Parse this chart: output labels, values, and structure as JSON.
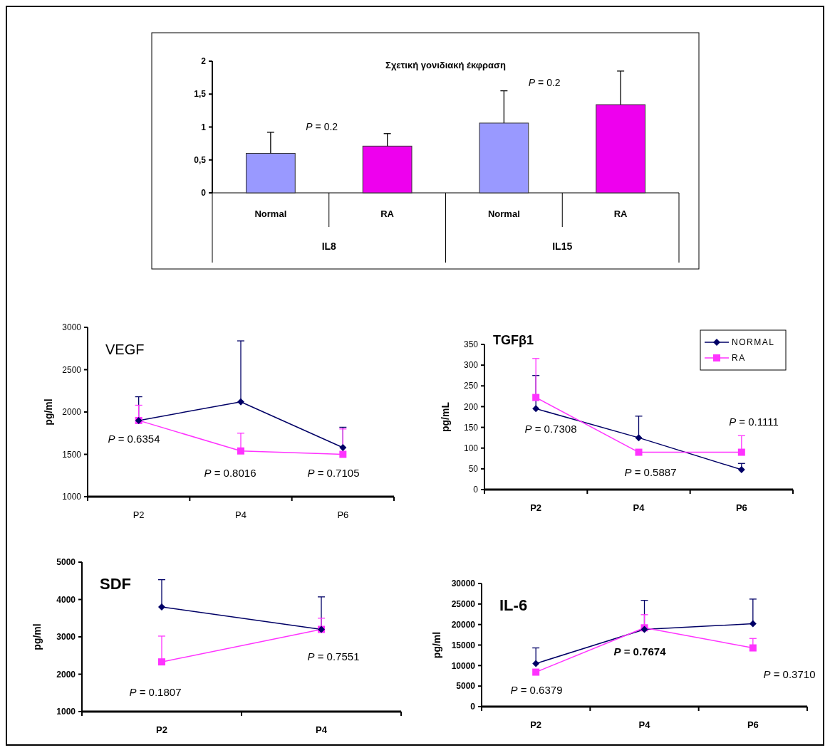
{
  "chart_data": [
    {
      "type": "bar",
      "title": "Σχετική γονιδιακή έκφραση",
      "categories": [
        "Normal",
        "RA",
        "Normal",
        "RA"
      ],
      "values": [
        0.6,
        0.71,
        1.06,
        1.34
      ],
      "colors": [
        "#9999ff",
        "#ee00ee",
        "#9999ff",
        "#ee00ee"
      ],
      "errors": [
        [
          0.6,
          0.92
        ],
        [
          0.71,
          0.9
        ],
        [
          1.06,
          1.55
        ],
        [
          1.34,
          1.85
        ]
      ],
      "ylim": [
        0,
        2
      ],
      "yticks": [
        0,
        {
          "value": 0.5,
          "label": "0,5"
        },
        1,
        {
          "value": 1.5,
          "label": "1,5"
        },
        2
      ],
      "annotations": [
        "P = 0.2",
        "P = 0.2",
        "IL8",
        "IL15"
      ]
    },
    {
      "type": "line",
      "title": "VEGF",
      "ylabel": "pg/ml",
      "categories": [
        "P2",
        "P4",
        "P6"
      ],
      "ylim": [
        1000,
        3000
      ],
      "yticks": [
        1000,
        1500,
        2000,
        2500,
        3000
      ],
      "grid": false,
      "legend": false,
      "series": [
        {
          "color": "#000066",
          "marker": "diamond",
          "values": [
            1900,
            2120,
            1580
          ],
          "errors": [
            [
              1900,
              2180
            ],
            [
              2120,
              2840
            ],
            [
              1580,
              1820
            ]
          ]
        },
        {
          "color": "#ff33ff",
          "marker": "square",
          "values": [
            1900,
            1540,
            1500
          ],
          "errors": [
            [
              1900,
              2080
            ],
            [
              1540,
              1750
            ],
            [
              1500,
              1800
            ]
          ]
        }
      ],
      "annotations": [
        "P = 0.6354",
        "P = 0.8016",
        "P = 0.7105"
      ]
    },
    {
      "type": "line",
      "title": "TGFβ1",
      "ylabel": "pg/mL",
      "categories": [
        "P2",
        "P4",
        "P6"
      ],
      "ylim": [
        0,
        350
      ],
      "yticks": [
        0,
        50,
        100,
        150,
        200,
        250,
        300,
        350
      ],
      "grid": false,
      "legend": "top right",
      "series": [
        {
          "name": "NORMAL",
          "color": "#000066",
          "marker": "diamond",
          "values": [
            195,
            125,
            48
          ],
          "errors": [
            [
              195,
              275
            ],
            [
              125,
              177
            ],
            [
              48,
              63
            ]
          ]
        },
        {
          "name": "RA",
          "color": "#ff33ff",
          "marker": "square",
          "values": [
            222,
            90,
            90
          ],
          "errors": [
            [
              222,
              316
            ],
            null,
            [
              90,
              130
            ]
          ]
        }
      ],
      "annotations": [
        "P = 0.7308",
        "P = 0.5887",
        "P = 0.1111"
      ]
    },
    {
      "type": "line",
      "title": "SDF",
      "ylabel": "pg/ml",
      "categories": [
        "P2",
        "P4"
      ],
      "ylim": [
        1000,
        5000
      ],
      "yticks": [
        1000,
        2000,
        3000,
        4000,
        5000
      ],
      "grid": false,
      "legend": false,
      "series": [
        {
          "color": "#000066",
          "marker": "diamond",
          "values": [
            3800,
            3200
          ],
          "errors": [
            [
              3800,
              4530
            ],
            [
              3200,
              4070
            ]
          ]
        },
        {
          "color": "#ff33ff",
          "marker": "square",
          "values": [
            2330,
            3200
          ],
          "errors": [
            [
              2330,
              3020
            ],
            [
              3200,
              3500
            ]
          ]
        }
      ],
      "annotations": [
        "P = 0.1807",
        "P = 0.7551"
      ]
    },
    {
      "type": "line",
      "title": "IL-6",
      "ylabel": "pg/ml",
      "categories": [
        "P2",
        "P4",
        "P6"
      ],
      "ylim": [
        0,
        30000
      ],
      "yticks": [
        0,
        5000,
        10000,
        15000,
        20000,
        25000,
        30000
      ],
      "grid": false,
      "legend": false,
      "series": [
        {
          "color": "#000066",
          "marker": "diamond",
          "values": [
            10500,
            18800,
            20200
          ],
          "errors": [
            [
              10500,
              14300
            ],
            [
              18800,
              25900
            ],
            [
              20200,
              26200
            ]
          ]
        },
        {
          "color": "#ff33ff",
          "marker": "square",
          "values": [
            8400,
            19200,
            14300
          ],
          "errors": [
            null,
            [
              19200,
              22400
            ],
            [
              14300,
              16600
            ]
          ]
        }
      ],
      "annotations": [
        "P = 0.6379",
        "P = 0.7674",
        "P = 0.3710"
      ]
    }
  ]
}
